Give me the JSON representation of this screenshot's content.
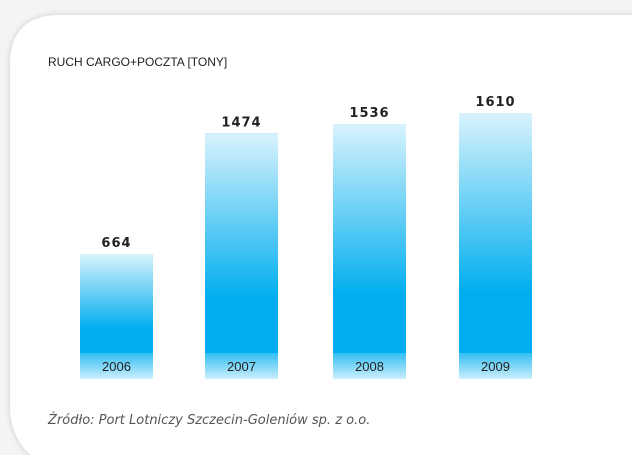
{
  "chart_data": {
    "type": "bar",
    "title": "RUCH CARGO+POCZTA [TONY]",
    "categories": [
      "2006",
      "2007",
      "2008",
      "2009"
    ],
    "values": [
      664,
      1474,
      1536,
      1610
    ],
    "color": "#00aeef",
    "source": "Źródło: Port Lotniczy Szczecin-Goleniów sp. z o.o."
  }
}
